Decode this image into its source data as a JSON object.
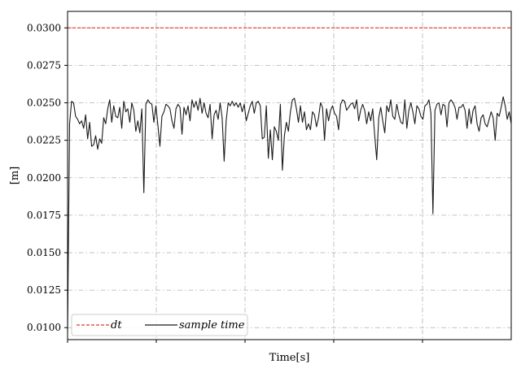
{
  "chart_data": {
    "type": "line",
    "title": "",
    "xlabel": "Time[s]",
    "ylabel": "[m]",
    "ylim": [
      0.0092,
      0.0311
    ],
    "yticks": [
      "0.0100",
      "0.0125",
      "0.0150",
      "0.0175",
      "0.0200",
      "0.0225",
      "0.0250",
      "0.0275",
      "0.0300"
    ],
    "x_tick_count": 5,
    "grid": true,
    "legend_position": "lower-left",
    "series": [
      {
        "name": "dt",
        "style": "dashed",
        "color": "#e8382c",
        "values": [
          0.03,
          0.03
        ]
      },
      {
        "name": "sample time",
        "style": "solid",
        "color": "#1a1a1a",
        "values": [
          0.0098,
          0.0236,
          0.0251,
          0.025,
          0.0241,
          0.0239,
          0.0236,
          0.0238,
          0.0233,
          0.0242,
          0.0226,
          0.0237,
          0.0221,
          0.0222,
          0.0228,
          0.0219,
          0.0226,
          0.0223,
          0.024,
          0.0236,
          0.0246,
          0.0252,
          0.0237,
          0.0248,
          0.0241,
          0.024,
          0.0247,
          0.0233,
          0.0251,
          0.0244,
          0.0246,
          0.0237,
          0.025,
          0.0245,
          0.0231,
          0.0238,
          0.023,
          0.0246,
          0.019,
          0.0249,
          0.0252,
          0.025,
          0.0249,
          0.0237,
          0.0248,
          0.0235,
          0.0221,
          0.0241,
          0.0244,
          0.0249,
          0.0248,
          0.0246,
          0.0238,
          0.0233,
          0.0246,
          0.0249,
          0.0247,
          0.0229,
          0.0247,
          0.0242,
          0.0248,
          0.0238,
          0.0252,
          0.0247,
          0.0251,
          0.0245,
          0.0253,
          0.0243,
          0.025,
          0.0243,
          0.024,
          0.0249,
          0.0226,
          0.0242,
          0.0245,
          0.0239,
          0.025,
          0.024,
          0.0211,
          0.0238,
          0.025,
          0.0248,
          0.0251,
          0.0248,
          0.025,
          0.0247,
          0.025,
          0.0244,
          0.0249,
          0.0238,
          0.0243,
          0.0248,
          0.0251,
          0.0243,
          0.025,
          0.0251,
          0.0248,
          0.0226,
          0.0227,
          0.0248,
          0.0213,
          0.0232,
          0.0212,
          0.0234,
          0.0231,
          0.0225,
          0.0249,
          0.0205,
          0.0228,
          0.0237,
          0.0231,
          0.0244,
          0.0252,
          0.0253,
          0.0246,
          0.0237,
          0.0248,
          0.0237,
          0.0244,
          0.0232,
          0.0236,
          0.0232,
          0.0244,
          0.0242,
          0.0234,
          0.024,
          0.025,
          0.0247,
          0.0225,
          0.0246,
          0.0238,
          0.0245,
          0.0248,
          0.0243,
          0.0241,
          0.0232,
          0.0249,
          0.0252,
          0.0251,
          0.0245,
          0.0247,
          0.0249,
          0.025,
          0.0246,
          0.0252,
          0.0238,
          0.0245,
          0.0249,
          0.0245,
          0.0236,
          0.0244,
          0.0238,
          0.0246,
          0.0228,
          0.0212,
          0.024,
          0.0247,
          0.0238,
          0.023,
          0.0248,
          0.0244,
          0.0252,
          0.0241,
          0.0239,
          0.0249,
          0.0242,
          0.0237,
          0.0236,
          0.0252,
          0.0233,
          0.0245,
          0.025,
          0.0244,
          0.0236,
          0.0248,
          0.0246,
          0.0241,
          0.0239,
          0.0248,
          0.0249,
          0.0252,
          0.0243,
          0.0176,
          0.0245,
          0.0249,
          0.025,
          0.0242,
          0.0249,
          0.0248,
          0.0234,
          0.025,
          0.0252,
          0.025,
          0.0247,
          0.0239,
          0.0247,
          0.0247,
          0.0249,
          0.0245,
          0.0233,
          0.0246,
          0.0236,
          0.0245,
          0.0248,
          0.0236,
          0.0231,
          0.024,
          0.0242,
          0.0236,
          0.0234,
          0.0239,
          0.0244,
          0.024,
          0.0225,
          0.0243,
          0.0241,
          0.0247,
          0.0254,
          0.0248,
          0.0239,
          0.0244,
          0.0236
        ]
      }
    ]
  }
}
